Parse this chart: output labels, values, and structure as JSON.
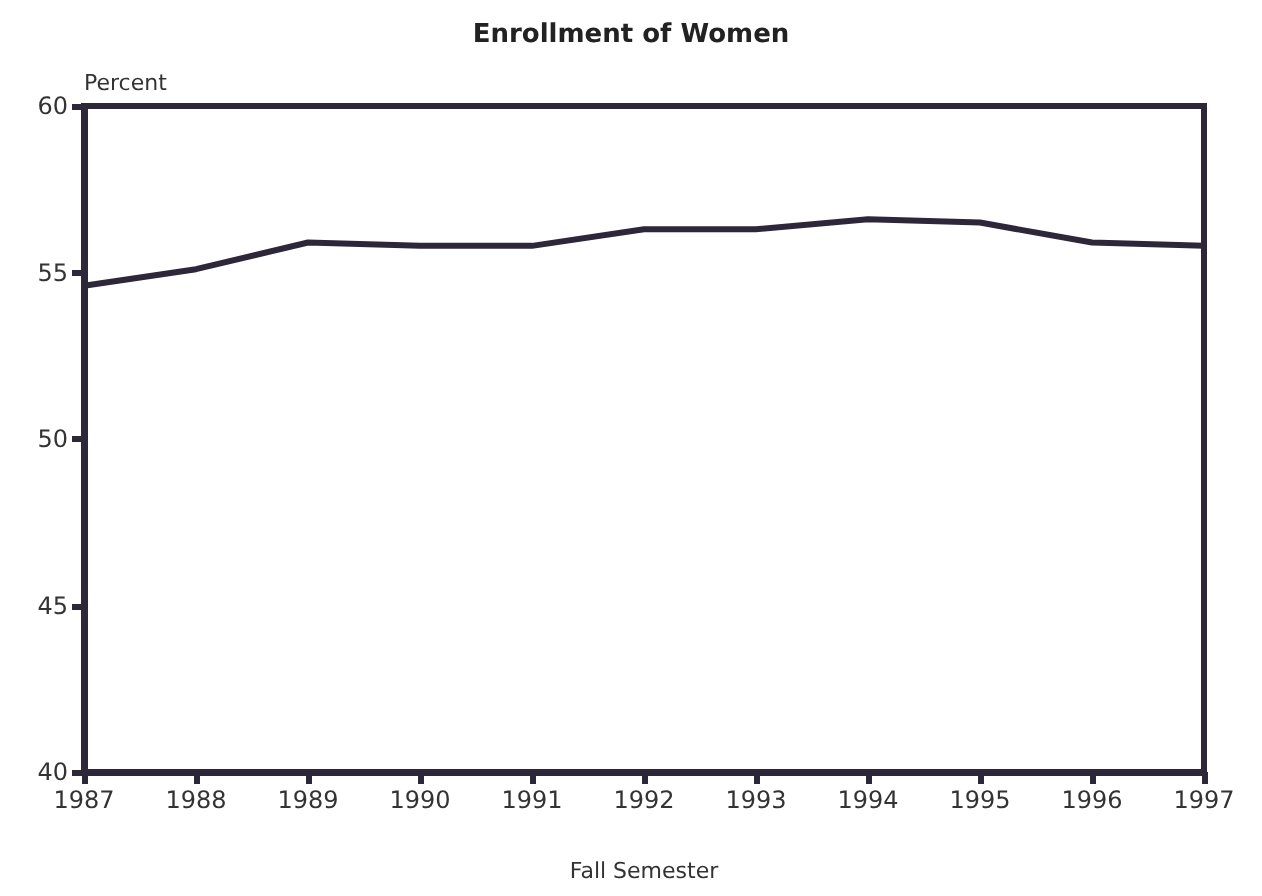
{
  "chart_data": {
    "type": "line",
    "title": "Enrollment of Women",
    "ylabel": "Percent",
    "xlabel": "Fall Semester",
    "x": [
      1987,
      1988,
      1989,
      1990,
      1991,
      1992,
      1993,
      1994,
      1995,
      1996,
      1997
    ],
    "series": [
      {
        "color": "#2e2639",
        "values": [
          54.6,
          55.1,
          55.9,
          55.8,
          55.8,
          56.3,
          56.3,
          56.6,
          56.5,
          55.9,
          55.8
        ]
      }
    ],
    "xlim": [
      1987,
      1997
    ],
    "xticks": [
      1987,
      1988,
      1989,
      1990,
      1991,
      1992,
      1993,
      1994,
      1995,
      1996,
      1997
    ],
    "ylim": [
      40,
      60
    ],
    "yticks": [
      40,
      45,
      50,
      55,
      60
    ],
    "grid": false,
    "marker": "none",
    "line_style": "solid"
  }
}
